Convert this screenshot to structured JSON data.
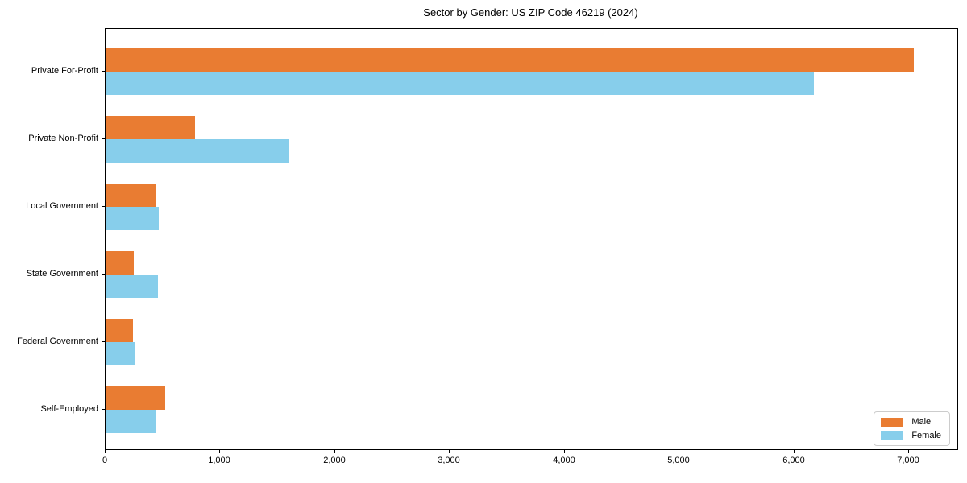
{
  "chart_data": {
    "type": "bar",
    "orientation": "horizontal",
    "title": "Sector by Gender: US ZIP Code 46219 (2024)",
    "categories": [
      "Private For-Profit",
      "Private Non-Profit",
      "Local Government",
      "State Government",
      "Federal Government",
      "Self-Employed"
    ],
    "series": [
      {
        "name": "Male",
        "color": "#e97c32",
        "values": [
          7040,
          780,
          435,
          245,
          240,
          520
        ]
      },
      {
        "name": "Female",
        "color": "#87ceeb",
        "values": [
          6170,
          1600,
          465,
          455,
          260,
          435
        ]
      }
    ],
    "xlabel": "",
    "ylabel": "",
    "xlim": [
      0,
      7420
    ],
    "x_ticks": [
      0,
      1000,
      2000,
      3000,
      4000,
      5000,
      6000,
      7000
    ],
    "x_tick_labels": [
      "0",
      "1,000",
      "2,000",
      "3,000",
      "4,000",
      "5,000",
      "6,000",
      "7,000"
    ],
    "legend": {
      "entries": [
        "Male",
        "Female"
      ],
      "position": "lower right"
    },
    "grid": false,
    "background_color": "#ffffff",
    "frame_color": "#000000"
  }
}
